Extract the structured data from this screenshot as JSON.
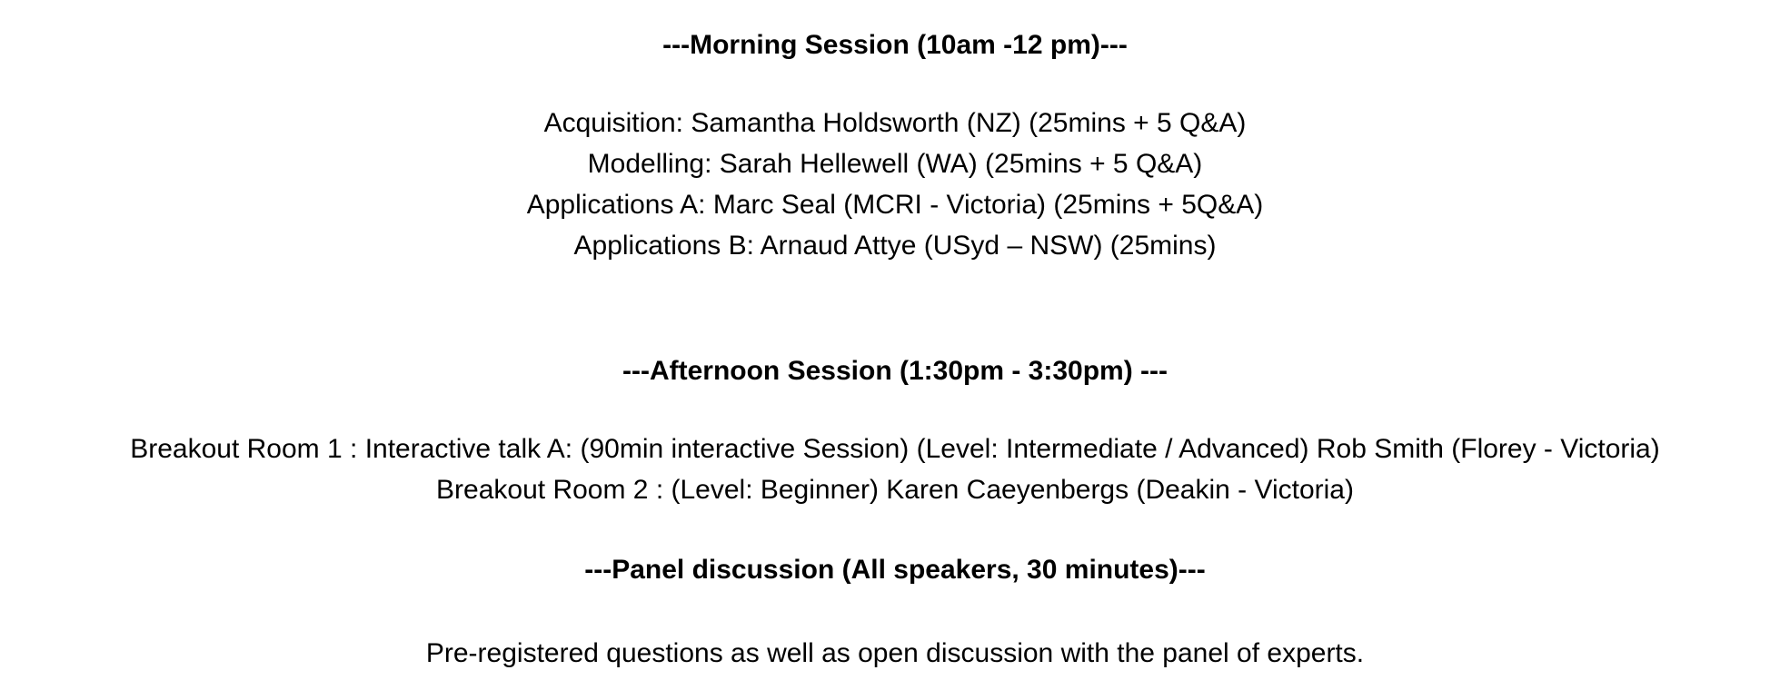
{
  "morning": {
    "heading": "---Morning Session (10am -12 pm)---",
    "items": [
      "Acquisition: Samantha Holdsworth (NZ) (25mins + 5 Q&A)",
      "Modelling: Sarah Hellewell (WA) (25mins + 5 Q&A)",
      "Applications A: Marc Seal (MCRI - Victoria) (25mins + 5Q&A)",
      "Applications B: Arnaud Attye (USyd – NSW) (25mins)"
    ]
  },
  "afternoon": {
    "heading": "---Afternoon Session (1:30pm - 3:30pm) ---",
    "items": [
      "Breakout Room 1 : Interactive talk A: (90min interactive Session) (Level: Intermediate / Advanced) Rob Smith (Florey - Victoria)",
      "Breakout Room 2 : (Level: Beginner) Karen Caeyenbergs (Deakin - Victoria)"
    ]
  },
  "panel": {
    "heading": "---Panel discussion (All speakers, 30 minutes)---",
    "text": "Pre-registered questions as well as open discussion with the panel of experts."
  }
}
